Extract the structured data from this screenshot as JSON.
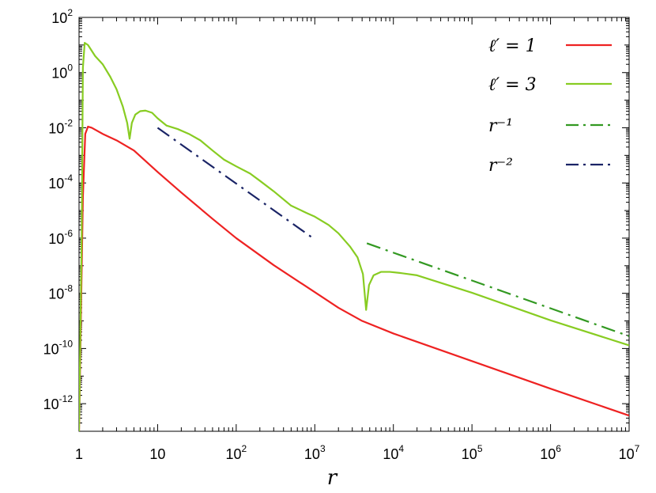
{
  "chart_data": {
    "type": "line",
    "title": "",
    "xlabel": "r",
    "ylabel": "",
    "x_scale": "log",
    "y_scale": "log",
    "xlim": [
      1,
      10000000
    ],
    "ylim": [
      1e-13,
      100
    ],
    "grid": false,
    "legend_position": "top-right",
    "x_ticks": [
      {
        "value": 1,
        "base": "1",
        "exp": ""
      },
      {
        "value": 10,
        "base": "10",
        "exp": ""
      },
      {
        "value": 100,
        "base": "10",
        "exp": "2"
      },
      {
        "value": 1000,
        "base": "10",
        "exp": "3"
      },
      {
        "value": 10000,
        "base": "10",
        "exp": "4"
      },
      {
        "value": 100000,
        "base": "10",
        "exp": "5"
      },
      {
        "value": 1000000,
        "base": "10",
        "exp": "6"
      },
      {
        "value": 10000000,
        "base": "10",
        "exp": "7"
      }
    ],
    "y_ticks": [
      {
        "value": 1e-12,
        "base": "10",
        "exp": "-12"
      },
      {
        "value": 1e-10,
        "base": "10",
        "exp": "-10"
      },
      {
        "value": 1e-08,
        "base": "10",
        "exp": "-8"
      },
      {
        "value": 1e-06,
        "base": "10",
        "exp": "-6"
      },
      {
        "value": 0.0001,
        "base": "10",
        "exp": "-4"
      },
      {
        "value": 0.01,
        "base": "10",
        "exp": "-2"
      },
      {
        "value": 1,
        "base": "10",
        "exp": "0"
      },
      {
        "value": 100,
        "base": "10",
        "exp": "2"
      }
    ],
    "series": [
      {
        "name": "ℓ′ = 1",
        "color": "#ee2222",
        "style": "solid",
        "points": [
          [
            1.0,
            1e-13
          ],
          [
            1.12,
            3e-05
          ],
          [
            1.2,
            0.006
          ],
          [
            1.3,
            0.011
          ],
          [
            1.45,
            0.01
          ],
          [
            2,
            0.006
          ],
          [
            3,
            0.0035
          ],
          [
            5,
            0.0015
          ],
          [
            10,
            0.00025
          ],
          [
            20,
            4.5e-05
          ],
          [
            50,
            5e-06
          ],
          [
            100,
            1e-06
          ],
          [
            300,
            1.05e-07
          ],
          [
            1000,
            1.1e-08
          ],
          [
            2000,
            3e-09
          ],
          [
            4000,
            1e-09
          ],
          [
            10000,
            3.5e-10
          ],
          [
            100000,
            3.5e-11
          ],
          [
            1000000,
            3.5e-12
          ],
          [
            10000000,
            3.7e-13
          ]
        ]
      },
      {
        "name": "ℓ′ = 3",
        "color": "#88cc22",
        "style": "solid",
        "points": [
          [
            1.0,
            1e-13
          ],
          [
            1.08,
            1e-06
          ],
          [
            1.12,
            1.5
          ],
          [
            1.18,
            12
          ],
          [
            1.3,
            10
          ],
          [
            1.6,
            4
          ],
          [
            2,
            2
          ],
          [
            2.5,
            0.7
          ],
          [
            3,
            0.25
          ],
          [
            3.6,
            0.06
          ],
          [
            4.1,
            0.015
          ],
          [
            4.4,
            0.004
          ],
          [
            4.7,
            0.015
          ],
          [
            5.2,
            0.03
          ],
          [
            6,
            0.04
          ],
          [
            7,
            0.042
          ],
          [
            8.5,
            0.035
          ],
          [
            10,
            0.022
          ],
          [
            13,
            0.012
          ],
          [
            18,
            0.009
          ],
          [
            25,
            0.006
          ],
          [
            35,
            0.0035
          ],
          [
            50,
            0.0015
          ],
          [
            70,
            0.0007
          ],
          [
            100,
            0.0004
          ],
          [
            150,
            0.00022
          ],
          [
            200,
            0.00012
          ],
          [
            300,
            5e-05
          ],
          [
            500,
            1.5e-05
          ],
          [
            800,
            8e-06
          ],
          [
            1000,
            6e-06
          ],
          [
            1500,
            3e-06
          ],
          [
            2000,
            1.5e-06
          ],
          [
            2800,
            5e-07
          ],
          [
            3500,
            2e-07
          ],
          [
            4100,
            5e-08
          ],
          [
            4500,
            2.5e-09
          ],
          [
            4900,
            2e-08
          ],
          [
            5600,
            4.5e-08
          ],
          [
            7000,
            6e-08
          ],
          [
            9000,
            6e-08
          ],
          [
            12000,
            5.5e-08
          ],
          [
            20000,
            4.5e-08
          ],
          [
            100000,
            1.05e-08
          ],
          [
            1000000,
            1.05e-09
          ],
          [
            10000000,
            1.3e-10
          ]
        ]
      },
      {
        "name": "r⁻¹",
        "color": "#339922",
        "style": "dashdot",
        "points": [
          [
            4600,
            6.5e-07
          ],
          [
            10000000,
            2.8e-10
          ]
        ]
      },
      {
        "name": "r⁻²",
        "color": "#1a2466",
        "style": "dashdot",
        "points": [
          [
            10,
            0.01
          ],
          [
            1000,
            9e-07
          ]
        ]
      }
    ]
  }
}
